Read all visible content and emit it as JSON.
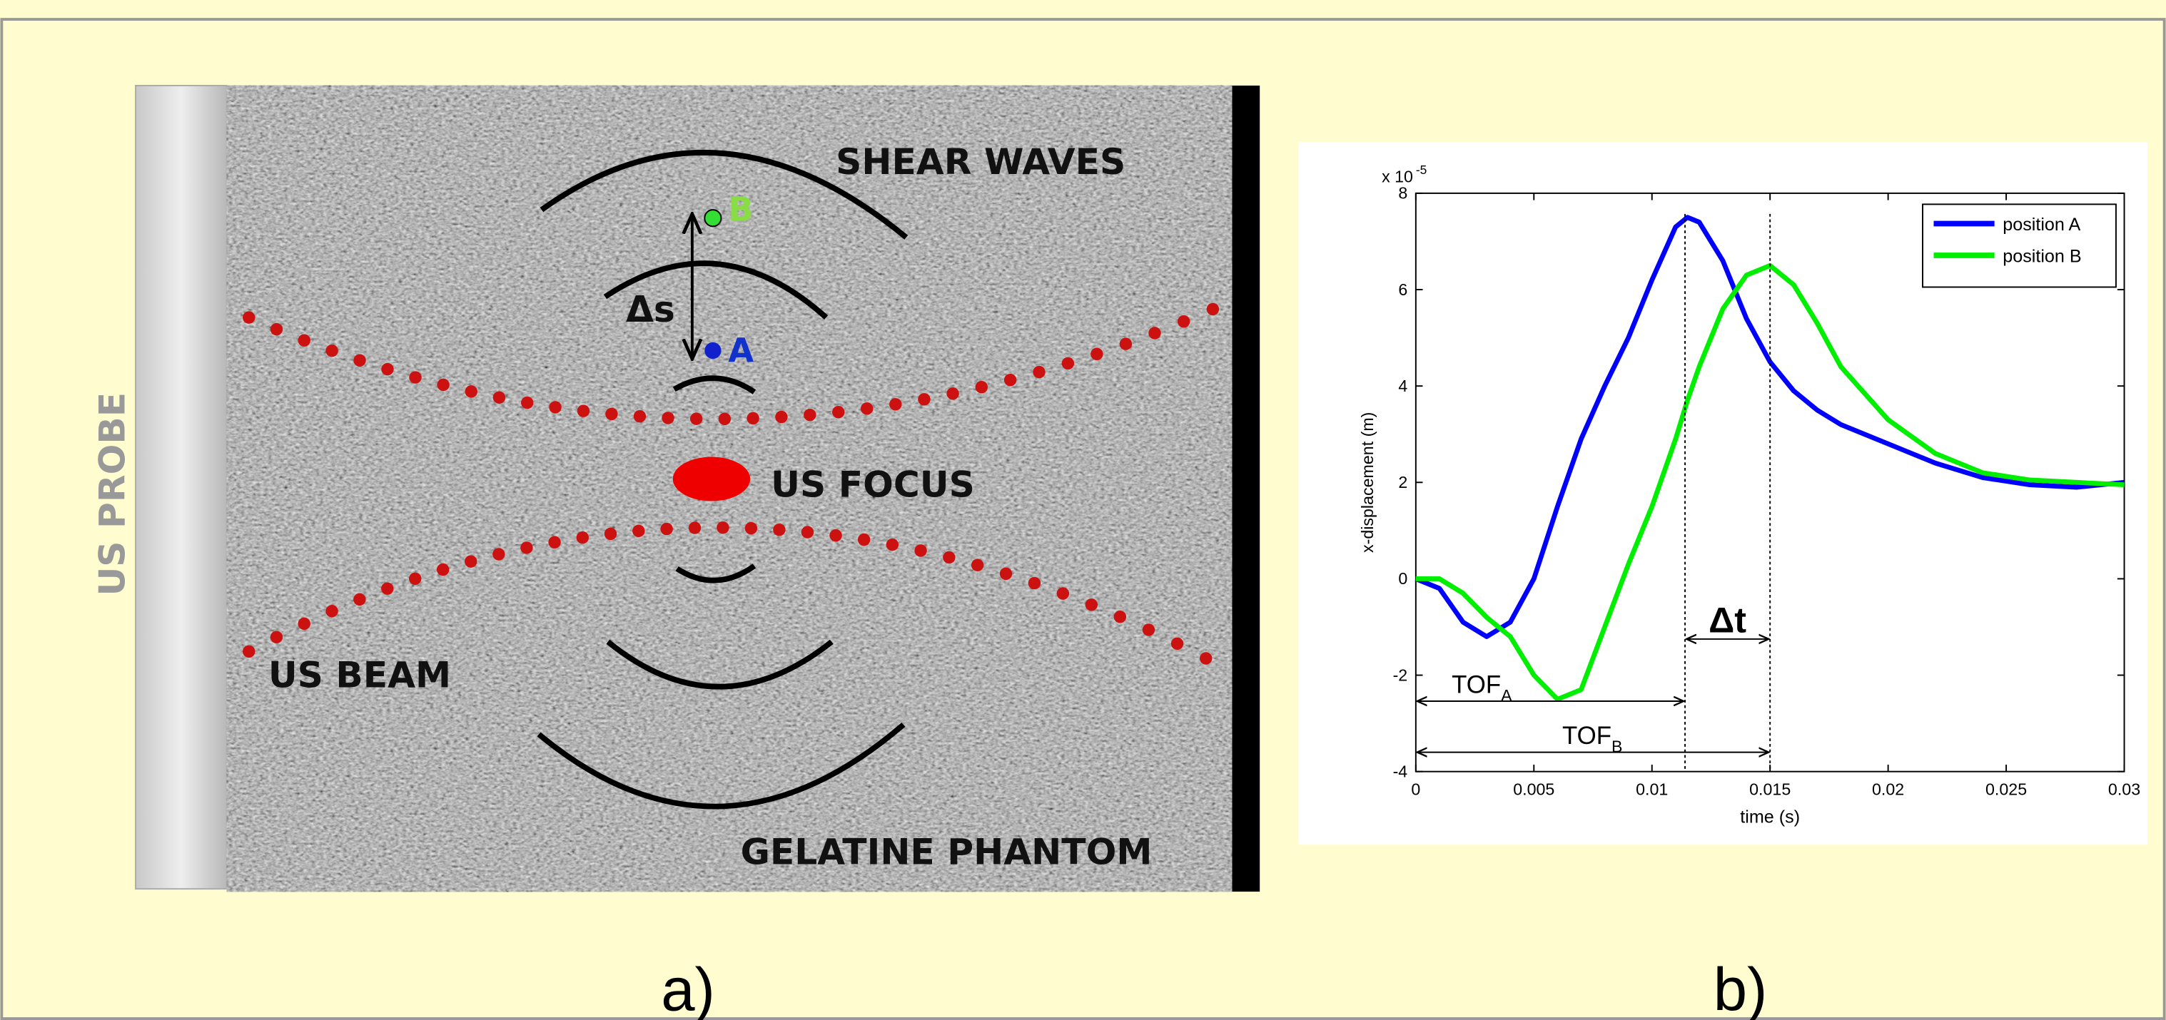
{
  "diagram": {
    "probe_label": "US PROBE",
    "shear_waves": "SHEAR WAVES",
    "point_b": "B",
    "delta_s": "Δs",
    "point_a": "A",
    "focus": "US FOCUS",
    "beam": "US BEAM",
    "phantom": "GELATINE PHANTOM",
    "panel_a": "a)",
    "panel_b": "b)"
  },
  "chart_data": {
    "type": "line",
    "x_label": "time (s)",
    "y_label": "x-displacement (m)",
    "y_scale_label": "x 10",
    "y_scale_exponent": "-5",
    "x": [
      0,
      0.001,
      0.002,
      0.003,
      0.004,
      0.005,
      0.006,
      0.007,
      0.008,
      0.009,
      0.01,
      0.011,
      0.0115,
      0.012,
      0.013,
      0.014,
      0.015,
      0.016,
      0.017,
      0.018,
      0.02,
      0.022,
      0.024,
      0.026,
      0.028,
      0.03
    ],
    "series": [
      {
        "name": "position A",
        "color": "#0000ff",
        "values": [
          0,
          -0.2,
          -0.9,
          -1.2,
          -0.9,
          0,
          1.5,
          2.9,
          4.0,
          5.0,
          6.2,
          7.3,
          7.5,
          7.4,
          6.6,
          5.4,
          4.5,
          3.9,
          3.5,
          3.2,
          2.8,
          2.4,
          2.1,
          1.95,
          1.9,
          2.0
        ]
      },
      {
        "name": "position B",
        "color": "#00ee00",
        "values": [
          0,
          0,
          -0.3,
          -0.8,
          -1.2,
          -2.0,
          -2.5,
          -2.3,
          -1.0,
          0.3,
          1.5,
          2.9,
          3.7,
          4.4,
          5.6,
          6.3,
          6.5,
          6.1,
          5.3,
          4.4,
          3.3,
          2.6,
          2.2,
          2.05,
          2.0,
          1.95
        ]
      }
    ],
    "xlim": [
      0,
      0.03
    ],
    "ylim": [
      -4,
      8
    ],
    "xticks": [
      0,
      0.005,
      0.01,
      0.015,
      0.02,
      0.025,
      0.03
    ],
    "yticks": [
      -4,
      -2,
      0,
      2,
      4,
      6,
      8
    ],
    "legend": "upper right",
    "annotations": [
      {
        "text": "TOF",
        "sub": "A",
        "x": 0.0114
      },
      {
        "text": "TOF",
        "sub": "B",
        "x": 0.015
      }
    ],
    "delta_label": "Δt"
  }
}
